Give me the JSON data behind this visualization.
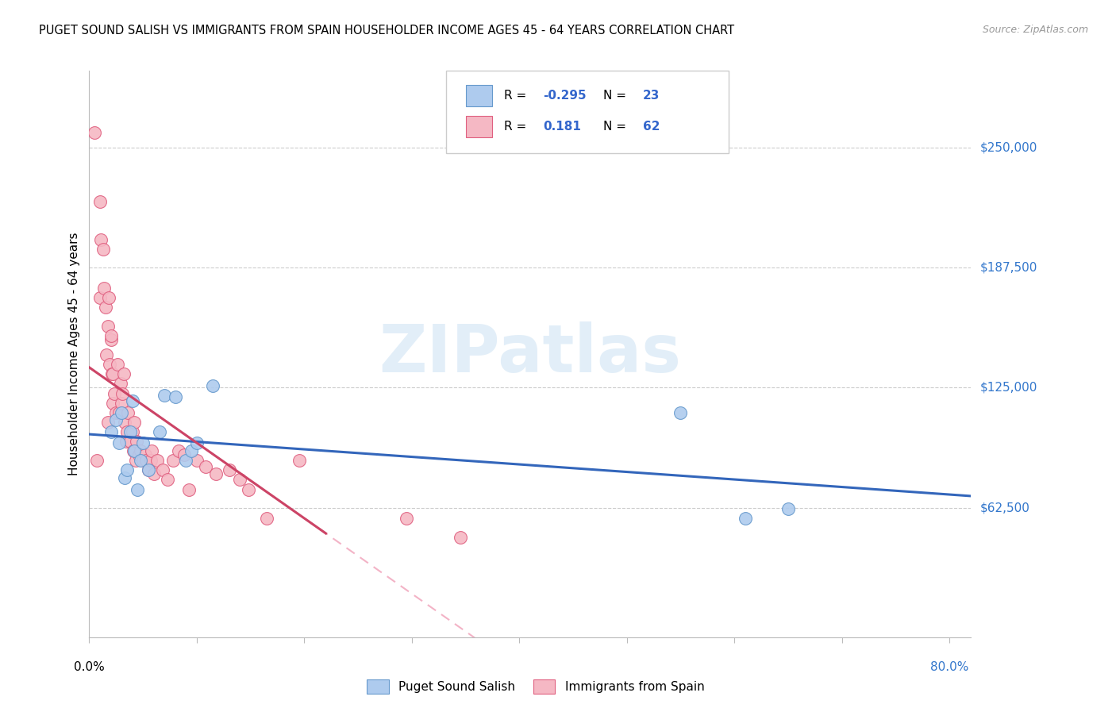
{
  "title": "PUGET SOUND SALISH VS IMMIGRANTS FROM SPAIN HOUSEHOLDER INCOME AGES 45 - 64 YEARS CORRELATION CHART",
  "source": "Source: ZipAtlas.com",
  "ylabel": "Householder Income Ages 45 - 64 years",
  "y_ticks": [
    62500,
    125000,
    187500,
    250000
  ],
  "y_tick_labels": [
    "$62,500",
    "$125,000",
    "$187,500",
    "$250,000"
  ],
  "xlim": [
    0.0,
    0.82
  ],
  "ylim": [
    -5000,
    290000
  ],
  "legend_r_blue": "-0.295",
  "legend_n_blue": "23",
  "legend_r_pink": "0.181",
  "legend_n_pink": "62",
  "blue_fill_color": "#AECBEE",
  "pink_fill_color": "#F5B8C4",
  "blue_edge_color": "#6699CC",
  "pink_edge_color": "#E06080",
  "blue_line_color": "#3366BB",
  "pink_line_color": "#CC4466",
  "pink_dash_color": "#F0A0B8",
  "watermark_color": "#D0E4F4",
  "blue_scatter_x": [
    0.02,
    0.025,
    0.028,
    0.03,
    0.033,
    0.035,
    0.038,
    0.04,
    0.042,
    0.045,
    0.048,
    0.05,
    0.055,
    0.065,
    0.07,
    0.08,
    0.09,
    0.095,
    0.1,
    0.115,
    0.55,
    0.61,
    0.65
  ],
  "blue_scatter_y": [
    102000,
    108000,
    96000,
    112000,
    78000,
    82000,
    102000,
    118000,
    92000,
    72000,
    87000,
    96000,
    82000,
    102000,
    121000,
    120000,
    87000,
    92000,
    96000,
    126000,
    112000,
    57000,
    62000
  ],
  "pink_scatter_x": [
    0.005,
    0.007,
    0.01,
    0.01,
    0.011,
    0.013,
    0.014,
    0.015,
    0.016,
    0.017,
    0.017,
    0.018,
    0.019,
    0.02,
    0.02,
    0.021,
    0.022,
    0.022,
    0.023,
    0.025,
    0.026,
    0.028,
    0.029,
    0.03,
    0.031,
    0.032,
    0.033,
    0.034,
    0.035,
    0.036,
    0.038,
    0.04,
    0.041,
    0.042,
    0.043,
    0.044,
    0.046,
    0.048,
    0.05,
    0.052,
    0.053,
    0.055,
    0.057,
    0.058,
    0.06,
    0.063,
    0.068,
    0.073,
    0.078,
    0.083,
    0.088,
    0.093,
    0.1,
    0.108,
    0.118,
    0.13,
    0.14,
    0.148,
    0.165,
    0.195,
    0.295,
    0.345
  ],
  "pink_scatter_y": [
    258000,
    87000,
    222000,
    172000,
    202000,
    197000,
    177000,
    167000,
    142000,
    107000,
    157000,
    172000,
    137000,
    150000,
    152000,
    132000,
    117000,
    132000,
    122000,
    112000,
    137000,
    112000,
    127000,
    117000,
    122000,
    132000,
    107000,
    97000,
    102000,
    112000,
    97000,
    102000,
    92000,
    107000,
    87000,
    97000,
    90000,
    92000,
    87000,
    90000,
    87000,
    82000,
    87000,
    92000,
    80000,
    87000,
    82000,
    77000,
    87000,
    92000,
    90000,
    72000,
    87000,
    84000,
    80000,
    82000,
    77000,
    72000,
    57000,
    87000,
    57000,
    47000
  ],
  "bottom_legend_labels": [
    "Puget Sound Salish",
    "Immigrants from Spain"
  ]
}
